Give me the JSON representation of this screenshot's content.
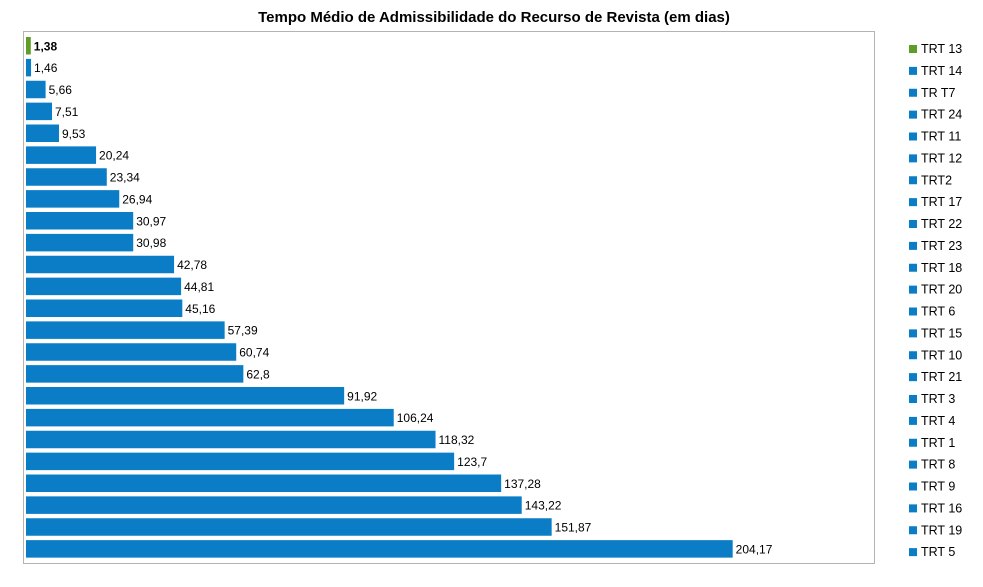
{
  "chart_data": {
    "type": "bar",
    "orientation": "horizontal",
    "title": "Tempo Médio de Admissibilidade do Recurso de Revista (em dias)",
    "xlabel": "",
    "ylabel": "",
    "xlim": [
      0,
      245
    ],
    "grid": false,
    "legend_position": "right",
    "categories": [
      "TRT 13",
      "TRT 14",
      "TR T7",
      "TRT 24",
      "TRT 11",
      "TRT 12",
      "TRT2",
      "TRT 17",
      "TRT 22",
      "TRT 23",
      "TRT 18",
      "TRT 20",
      "TRT 6",
      "TRT 15",
      "TRT 10",
      "TRT 21",
      "TRT 3",
      "TRT 4",
      "TRT 1",
      "TRT 8",
      "TRT 9",
      "TRT 16",
      "TRT 19",
      "TRT 5"
    ],
    "values": [
      1.38,
      1.46,
      5.66,
      7.51,
      9.53,
      20.24,
      23.34,
      26.94,
      30.97,
      30.98,
      42.78,
      44.81,
      45.16,
      57.39,
      60.74,
      62.8,
      91.92,
      106.24,
      118.32,
      123.7,
      137.28,
      143.22,
      151.87,
      204.17
    ],
    "labels": [
      "1,38",
      "1,46",
      "5,66",
      "7,51",
      "9,53",
      "20,24",
      "23,34",
      "26,94",
      "30,97",
      "30,98",
      "42,78",
      "44,81",
      "45,16",
      "57,39",
      "60,74",
      "62,8",
      "91,92",
      "106,24",
      "118,32",
      "123,7",
      "137,28",
      "143,22",
      "151,87",
      "204,17"
    ],
    "colors": [
      "#5e9e27",
      "#0a7dc6",
      "#0a7dc6",
      "#0a7dc6",
      "#0a7dc6",
      "#0a7dc6",
      "#0a7dc6",
      "#0a7dc6",
      "#0a7dc6",
      "#0a7dc6",
      "#0a7dc6",
      "#0a7dc6",
      "#0a7dc6",
      "#0a7dc6",
      "#0a7dc6",
      "#0a7dc6",
      "#0a7dc6",
      "#0a7dc6",
      "#0a7dc6",
      "#0a7dc6",
      "#0a7dc6",
      "#0a7dc6",
      "#0a7dc6",
      "#0a7dc6"
    ],
    "highlight_index": 0,
    "plot_border_color": "#b3b3b3"
  }
}
